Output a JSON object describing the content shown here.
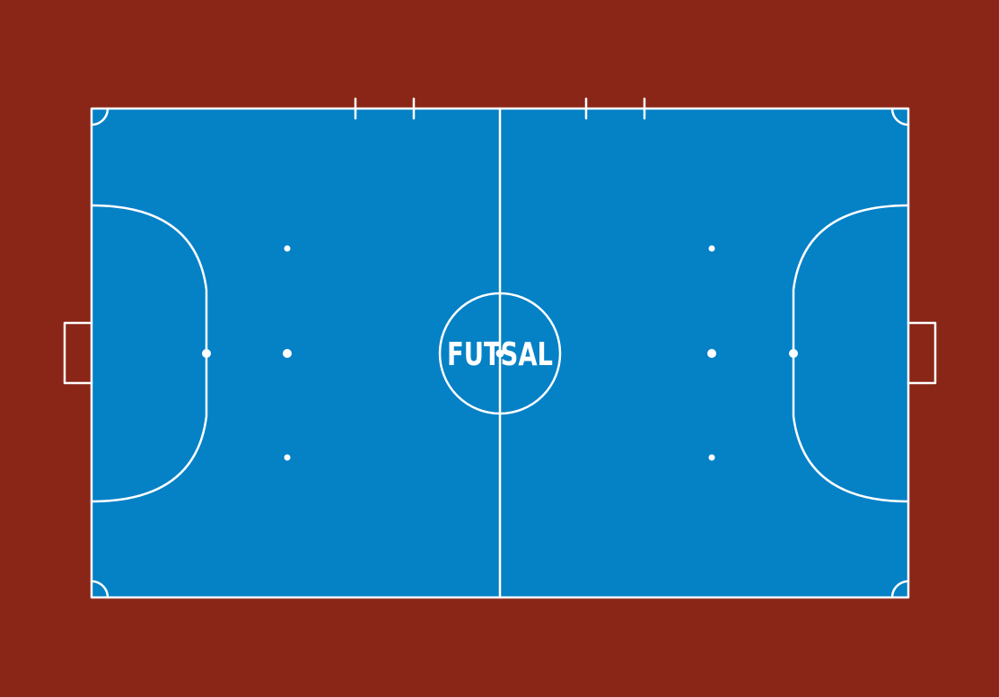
{
  "court": {
    "label": "FUTSAL"
  },
  "colors": {
    "surround": "#8a2617",
    "court": "#0581c6",
    "lines": "#ffffff"
  }
}
